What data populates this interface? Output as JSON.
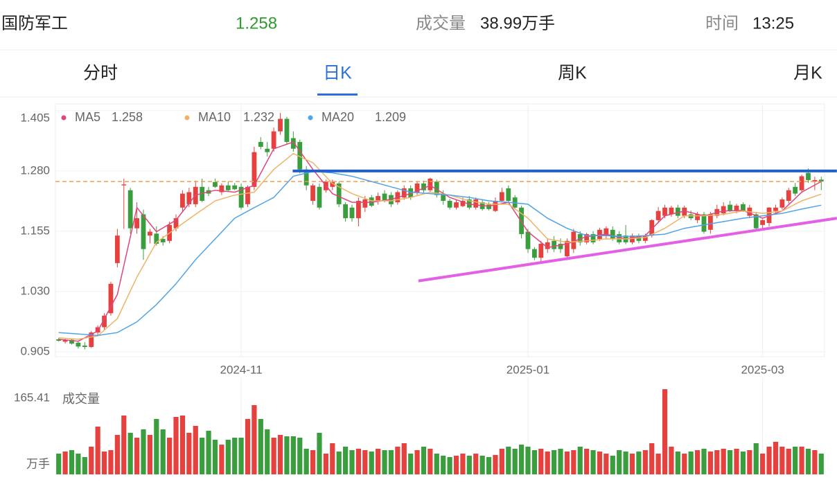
{
  "header": {
    "name": "国防军工",
    "price": 1.258,
    "volume_label": "成交量",
    "volume": "38.99万手",
    "time_label": "时间",
    "time": "13:25"
  },
  "tabs": [
    "分时",
    "日K",
    "周K",
    "月K"
  ],
  "active_tab": 1,
  "chart": {
    "type": "candlestick",
    "up_color": "#e5413e",
    "down_color": "#3b9e3e",
    "ylim": [
      0.895,
      1.419
    ],
    "yticks": [
      0.905,
      {
        "value": 1.03,
        "label": "1.030"
      },
      1.155,
      {
        "value": 1.28,
        "label": "1.280"
      },
      1.405
    ],
    "xticks": [
      {
        "value": 28,
        "label": "2024-11"
      },
      {
        "value": 72,
        "label": "2025-01"
      },
      {
        "value": 108,
        "label": "2025-03"
      }
    ],
    "candles": [
      [
        0.931,
        0.934,
        0.926,
        0.928
      ],
      [
        0.926,
        0.933,
        0.922,
        0.93
      ],
      [
        0.93,
        0.932,
        0.92,
        0.922
      ],
      [
        0.924,
        0.926,
        0.912,
        0.916
      ],
      [
        0.918,
        0.925,
        0.91,
        0.915
      ],
      [
        0.915,
        0.948,
        0.913,
        0.945
      ],
      [
        0.945,
        0.96,
        0.94,
        0.956
      ],
      [
        0.956,
        0.985,
        0.95,
        0.98
      ],
      [
        0.985,
        1.05,
        0.98,
        1.046
      ],
      [
        1.089,
        1.16,
        1.08,
        1.146
      ],
      [
        1.25,
        1.264,
        1.16,
        1.252
      ],
      [
        1.24,
        1.245,
        1.15,
        1.161
      ],
      [
        1.161,
        1.215,
        1.15,
        1.182
      ],
      [
        1.19,
        1.2,
        1.096,
        1.118
      ],
      [
        1.146,
        1.16,
        1.13,
        1.154
      ],
      [
        1.15,
        1.165,
        1.125,
        1.129
      ],
      [
        1.139,
        1.145,
        1.125,
        1.132
      ],
      [
        1.135,
        1.175,
        1.13,
        1.168
      ],
      [
        1.161,
        1.19,
        1.155,
        1.182
      ],
      [
        1.204,
        1.24,
        1.195,
        1.233
      ],
      [
        1.211,
        1.245,
        1.205,
        1.236
      ],
      [
        1.211,
        1.26,
        1.205,
        1.247
      ],
      [
        1.247,
        1.264,
        1.215,
        1.218
      ],
      [
        1.24,
        1.247,
        1.228,
        1.233
      ],
      [
        1.257,
        1.264,
        1.245,
        1.247
      ],
      [
        1.236,
        1.254,
        1.23,
        1.25
      ],
      [
        1.25,
        1.258,
        1.238,
        1.24
      ],
      [
        1.25,
        1.255,
        1.24,
        1.242
      ],
      [
        1.247,
        1.254,
        1.2,
        1.204
      ],
      [
        1.211,
        1.25,
        1.205,
        1.247
      ],
      [
        1.247,
        1.33,
        1.24,
        1.319
      ],
      [
        1.34,
        1.35,
        1.325,
        1.33
      ],
      [
        1.326,
        1.34,
        1.31,
        1.319
      ],
      [
        1.326,
        1.37,
        1.32,
        1.362
      ],
      [
        1.362,
        1.4,
        1.355,
        1.388
      ],
      [
        1.388,
        1.392,
        1.335,
        1.34
      ],
      [
        1.348,
        1.362,
        1.32,
        1.326
      ],
      [
        1.34,
        1.345,
        1.275,
        1.283
      ],
      [
        1.283,
        1.29,
        1.24,
        1.25
      ],
      [
        1.218,
        1.254,
        1.21,
        1.25
      ],
      [
        1.247,
        1.254,
        1.2,
        1.204
      ],
      [
        1.24,
        1.262,
        1.235,
        1.258
      ],
      [
        1.247,
        1.262,
        1.24,
        1.257
      ],
      [
        1.254,
        1.258,
        1.205,
        1.211
      ],
      [
        1.211,
        1.215,
        1.175,
        1.182
      ],
      [
        1.204,
        1.21,
        1.175,
        1.182
      ],
      [
        1.182,
        1.225,
        1.165,
        1.218
      ],
      [
        1.204,
        1.228,
        1.195,
        1.221
      ],
      [
        1.225,
        1.23,
        1.205,
        1.208
      ],
      [
        1.218,
        1.235,
        1.21,
        1.228
      ],
      [
        1.233,
        1.24,
        1.215,
        1.218
      ],
      [
        1.23,
        1.236,
        1.205,
        1.211
      ],
      [
        1.215,
        1.24,
        1.21,
        1.236
      ],
      [
        1.225,
        1.25,
        1.22,
        1.244
      ],
      [
        1.244,
        1.25,
        1.22,
        1.225
      ],
      [
        1.236,
        1.258,
        1.23,
        1.254
      ],
      [
        1.254,
        1.26,
        1.235,
        1.24
      ],
      [
        1.24,
        1.266,
        1.235,
        1.264
      ],
      [
        1.258,
        1.262,
        1.225,
        1.23
      ],
      [
        1.233,
        1.24,
        1.21,
        1.218
      ],
      [
        1.218,
        1.222,
        1.2,
        1.204
      ],
      [
        1.204,
        1.22,
        1.2,
        1.215
      ],
      [
        1.207,
        1.225,
        1.205,
        1.218
      ],
      [
        1.221,
        1.228,
        1.2,
        1.204
      ],
      [
        1.204,
        1.225,
        1.2,
        1.221
      ],
      [
        1.215,
        1.22,
        1.198,
        1.201
      ],
      [
        1.21,
        1.215,
        1.198,
        1.201
      ],
      [
        1.197,
        1.225,
        1.195,
        1.218
      ],
      [
        1.218,
        1.245,
        1.215,
        1.236
      ],
      [
        1.244,
        1.25,
        1.215,
        1.218
      ],
      [
        1.225,
        1.23,
        1.2,
        1.204
      ],
      [
        1.204,
        1.208,
        1.14,
        1.149
      ],
      [
        1.154,
        1.16,
        1.11,
        1.118
      ],
      [
        1.118,
        1.122,
        1.095,
        1.1
      ],
      [
        1.1,
        1.135,
        1.09,
        1.129
      ],
      [
        1.118,
        1.14,
        1.11,
        1.132
      ],
      [
        1.135,
        1.145,
        1.112,
        1.118
      ],
      [
        1.129,
        1.14,
        1.11,
        1.118
      ],
      [
        1.103,
        1.14,
        1.095,
        1.135
      ],
      [
        1.118,
        1.16,
        1.11,
        1.154
      ],
      [
        1.149,
        1.155,
        1.125,
        1.132
      ],
      [
        1.132,
        1.152,
        1.128,
        1.149
      ],
      [
        1.149,
        1.155,
        1.128,
        1.132
      ],
      [
        1.139,
        1.162,
        1.135,
        1.158
      ],
      [
        1.146,
        1.165,
        1.14,
        1.161
      ],
      [
        1.158,
        1.165,
        1.135,
        1.139
      ],
      [
        1.149,
        1.155,
        1.128,
        1.132
      ],
      [
        1.146,
        1.168,
        1.128,
        1.132
      ],
      [
        1.132,
        1.15,
        1.128,
        1.146
      ],
      [
        1.144,
        1.15,
        1.13,
        1.135
      ],
      [
        1.135,
        1.15,
        1.13,
        1.146
      ],
      [
        1.146,
        1.18,
        1.142,
        1.178
      ],
      [
        1.178,
        1.205,
        1.172,
        1.197
      ],
      [
        1.187,
        1.21,
        1.182,
        1.204
      ],
      [
        1.19,
        1.208,
        1.185,
        1.204
      ],
      [
        1.204,
        1.21,
        1.182,
        1.187
      ],
      [
        1.187,
        1.208,
        1.182,
        1.204
      ],
      [
        1.19,
        1.198,
        1.178,
        1.182
      ],
      [
        1.178,
        1.195,
        1.172,
        1.19
      ],
      [
        1.19,
        1.195,
        1.15,
        1.154
      ],
      [
        1.158,
        1.195,
        1.15,
        1.19
      ],
      [
        1.187,
        1.21,
        1.182,
        1.201
      ],
      [
        1.192,
        1.215,
        1.188,
        1.207
      ],
      [
        1.21,
        1.218,
        1.195,
        1.197
      ],
      [
        1.197,
        1.212,
        1.192,
        1.208
      ],
      [
        1.211,
        1.215,
        1.195,
        1.197
      ],
      [
        1.187,
        1.21,
        1.182,
        1.204
      ],
      [
        1.19,
        1.195,
        1.155,
        1.161
      ],
      [
        1.168,
        1.18,
        1.16,
        1.178
      ],
      [
        1.172,
        1.205,
        1.165,
        1.204
      ],
      [
        1.197,
        1.21,
        1.192,
        1.204
      ],
      [
        1.204,
        1.225,
        1.2,
        1.221
      ],
      [
        1.218,
        1.245,
        1.212,
        1.24
      ],
      [
        1.247,
        1.255,
        1.228,
        1.233
      ],
      [
        1.24,
        1.272,
        1.235,
        1.269
      ],
      [
        1.276,
        1.285,
        1.255,
        1.261
      ],
      [
        1.258,
        1.268,
        1.24,
        1.261
      ],
      [
        1.262,
        1.268,
        1.24,
        1.258
      ]
    ],
    "ma_x": [
      0,
      3,
      6,
      9,
      12,
      15,
      18,
      21,
      24,
      27,
      30,
      33,
      36,
      39,
      42,
      45,
      48,
      51,
      54,
      57,
      60,
      63,
      66,
      69,
      72,
      75,
      78,
      81,
      84,
      87,
      90,
      93,
      96,
      99,
      102,
      105,
      108,
      111,
      114,
      117
    ],
    "ma": [
      {
        "name": "MA5",
        "color": "#e0457b",
        "values": [
          0.931,
          0.927,
          0.948,
          1.024,
          1.204,
          1.154,
          1.178,
          1.23,
          1.24,
          1.236,
          1.25,
          1.326,
          1.34,
          1.283,
          1.233,
          1.215,
          1.215,
          1.221,
          1.233,
          1.25,
          1.225,
          1.211,
          1.207,
          1.215,
          1.154,
          1.121,
          1.129,
          1.144,
          1.149,
          1.139,
          1.146,
          1.187,
          1.197,
          1.187,
          1.197,
          1.198,
          1.182,
          1.197,
          1.236,
          1.258
        ]
      },
      {
        "name": "MA10",
        "color": "#efb366",
        "values": [
          0.934,
          0.931,
          0.938,
          0.974,
          1.06,
          1.132,
          1.161,
          1.19,
          1.218,
          1.23,
          1.236,
          1.283,
          1.316,
          1.297,
          1.254,
          1.233,
          1.218,
          1.218,
          1.225,
          1.236,
          1.23,
          1.218,
          1.211,
          1.211,
          1.182,
          1.139,
          1.132,
          1.135,
          1.139,
          1.139,
          1.142,
          1.161,
          1.187,
          1.187,
          1.19,
          1.197,
          1.192,
          1.197,
          1.218,
          1.232
        ]
      },
      {
        "name": "MA20",
        "color": "#4fa3e8",
        "values": [
          0.945,
          0.942,
          0.939,
          0.945,
          0.967,
          1.003,
          1.046,
          1.096,
          1.139,
          1.182,
          1.204,
          1.225,
          1.269,
          1.279,
          1.276,
          1.269,
          1.258,
          1.247,
          1.236,
          1.233,
          1.23,
          1.225,
          1.218,
          1.215,
          1.211,
          1.182,
          1.161,
          1.146,
          1.146,
          1.144,
          1.146,
          1.149,
          1.161,
          1.168,
          1.175,
          1.182,
          1.187,
          1.192,
          1.201,
          1.209
        ]
      }
    ],
    "trend_lines": [
      {
        "color": "#1f5fd6",
        "x": [
          35.9,
          119.4
        ],
        "y": [
          1.28,
          1.28
        ]
      },
      {
        "color": "#e45ee6",
        "x": [
          55.2,
          119.4
        ],
        "y": [
          1.052,
          1.182
        ]
      }
    ],
    "volume": {
      "title": "成交量",
      "unit": "万手",
      "ylim": [
        0,
        165.41
      ],
      "yticks": [
        165.41
      ],
      "values": [
        40.4,
        44.4,
        47.1,
        40.4,
        33.6,
        53.8,
        92.8,
        44.4,
        47.1,
        76.7,
        114.3,
        80.7,
        71.3,
        87.4,
        76.7,
        107.6,
        87.4,
        71.3,
        111.6,
        114.3,
        80.7,
        94.2,
        71.3,
        84.7,
        67.3,
        57.8,
        67.3,
        71.3,
        71.3,
        107.6,
        134.5,
        107.6,
        87.4,
        71.3,
        76.7,
        74.0,
        74.0,
        71.3,
        49.8,
        47.1,
        80.7,
        40.4,
        60.5,
        44.4,
        53.8,
        47.1,
        49.8,
        47.1,
        44.4,
        49.8,
        47.1,
        47.1,
        53.8,
        60.5,
        40.4,
        47.1,
        53.8,
        49.8,
        40.4,
        36.3,
        33.6,
        36.3,
        40.4,
        36.3,
        40.4,
        36.3,
        33.6,
        37.7,
        49.8,
        53.8,
        49.8,
        57.8,
        53.8,
        47.1,
        49.8,
        44.4,
        47.1,
        49.8,
        44.4,
        47.1,
        53.8,
        49.8,
        47.1,
        44.4,
        40.4,
        36.3,
        47.1,
        44.4,
        40.4,
        44.4,
        47.1,
        60.5,
        40.4,
        165.41,
        53.8,
        44.4,
        40.4,
        44.4,
        47.1,
        49.8,
        44.4,
        47.1,
        49.8,
        47.1,
        49.8,
        44.4,
        47.1,
        60.5,
        40.4,
        53.8,
        63.2,
        53.8,
        49.8,
        53.8,
        53.8,
        49.8,
        47.1,
        40.4
      ]
    }
  }
}
